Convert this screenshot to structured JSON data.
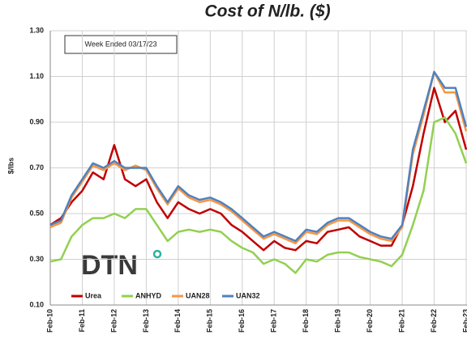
{
  "chart_data": {
    "type": "line",
    "title": "Cost of N/lb. ($)",
    "y_label": "$/lbs",
    "annotation": "Week Ended 03/17/23",
    "logo_text": "DTN",
    "categories": [
      "Feb-10",
      null,
      null,
      "Feb-11",
      null,
      null,
      "Feb-12",
      null,
      null,
      "Feb-13",
      null,
      null,
      "Feb-14",
      null,
      null,
      "Feb-15",
      null,
      null,
      "Feb-16",
      null,
      null,
      "Feb-17",
      null,
      null,
      "Feb-18",
      null,
      null,
      "Feb-19",
      null,
      null,
      "Feb-20",
      null,
      null,
      "Feb-21",
      null,
      null,
      "Feb-22",
      null,
      null,
      "Feb-23"
    ],
    "series": [
      {
        "name": "Urea",
        "color": "#c00000",
        "values": [
          0.45,
          0.48,
          0.55,
          0.6,
          0.68,
          0.65,
          0.8,
          0.65,
          0.62,
          0.65,
          0.55,
          0.48,
          0.55,
          0.52,
          0.5,
          0.52,
          0.5,
          0.45,
          0.42,
          0.38,
          0.34,
          0.38,
          0.35,
          0.34,
          0.38,
          0.37,
          0.42,
          0.43,
          0.44,
          0.4,
          0.38,
          0.36,
          0.36,
          0.45,
          0.62,
          0.85,
          1.05,
          0.9,
          0.95,
          0.78
        ]
      },
      {
        "name": "ANHYD",
        "color": "#92d050",
        "values": [
          0.29,
          0.3,
          0.4,
          0.45,
          0.48,
          0.48,
          0.5,
          0.48,
          0.52,
          0.52,
          0.45,
          0.38,
          0.42,
          0.43,
          0.42,
          0.43,
          0.42,
          0.38,
          0.35,
          0.33,
          0.28,
          0.3,
          0.28,
          0.24,
          0.3,
          0.29,
          0.32,
          0.33,
          0.33,
          0.31,
          0.3,
          0.29,
          0.27,
          0.32,
          0.45,
          0.6,
          0.9,
          0.92,
          0.85,
          0.72
        ]
      },
      {
        "name": "UAN28",
        "color": "#f79646",
        "values": [
          0.44,
          0.46,
          0.57,
          0.64,
          0.71,
          0.69,
          0.72,
          0.69,
          0.71,
          0.69,
          0.61,
          0.54,
          0.61,
          0.57,
          0.55,
          0.56,
          0.54,
          0.51,
          0.47,
          0.43,
          0.39,
          0.41,
          0.39,
          0.37,
          0.42,
          0.41,
          0.45,
          0.47,
          0.47,
          0.44,
          0.41,
          0.39,
          0.38,
          0.44,
          0.76,
          0.93,
          1.12,
          1.03,
          1.03,
          0.86
        ]
      },
      {
        "name": "UAN32",
        "color": "#4f81bd",
        "values": [
          0.45,
          0.47,
          0.58,
          0.65,
          0.72,
          0.7,
          0.73,
          0.7,
          0.7,
          0.7,
          0.62,
          0.55,
          0.62,
          0.58,
          0.56,
          0.57,
          0.55,
          0.52,
          0.48,
          0.44,
          0.4,
          0.42,
          0.4,
          0.38,
          0.43,
          0.42,
          0.46,
          0.48,
          0.48,
          0.45,
          0.42,
          0.4,
          0.39,
          0.45,
          0.78,
          0.95,
          1.12,
          1.05,
          1.05,
          0.88
        ]
      }
    ],
    "ylim": [
      0.1,
      1.3
    ],
    "yticks": [
      {
        "value": 0.1,
        "label": "0.10"
      },
      {
        "value": 0.3,
        "label": "0.30"
      },
      {
        "value": 0.5,
        "label": "0.50"
      },
      {
        "value": 0.7,
        "label": "0.70"
      },
      {
        "value": 0.9,
        "label": "0.90"
      },
      {
        "value": 1.1,
        "label": "1.10"
      },
      {
        "value": 1.3,
        "label": "1.30"
      }
    ],
    "grid": true,
    "legend": "bottom"
  }
}
